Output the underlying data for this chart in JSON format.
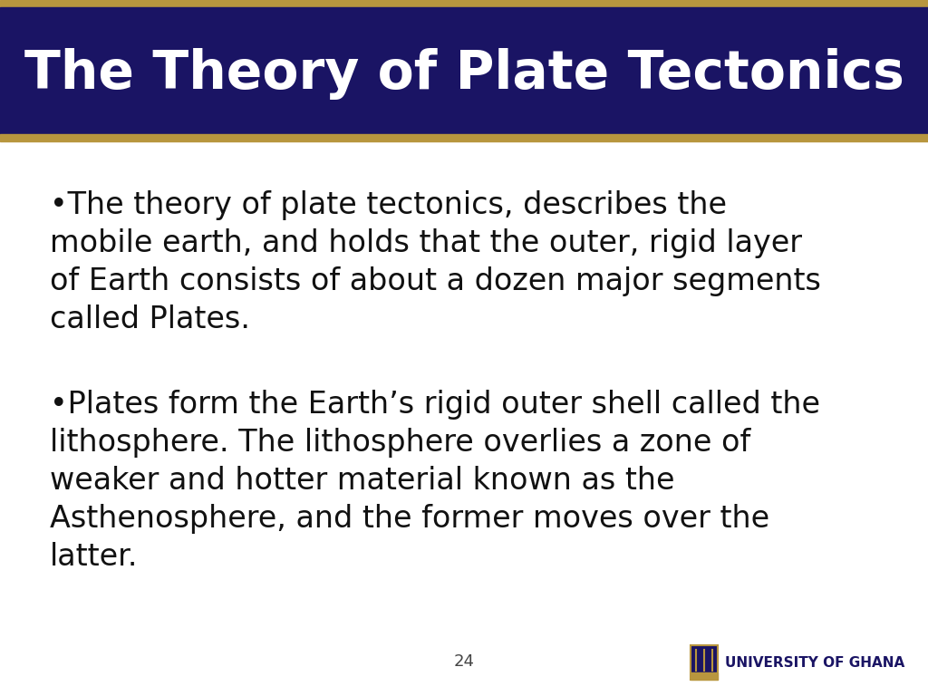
{
  "title": "The Theory of Plate Tectonics",
  "title_color": "#FFFFFF",
  "title_bg_color": "#1a1464",
  "title_font_size": 42,
  "gold_bar_color": "#B8963E",
  "background_color": "#FFFFFF",
  "bullet1_lines": [
    "•The theory of plate tectonics, describes the",
    "mobile earth, and holds that the outer, rigid layer",
    "of Earth consists of about a dozen major segments",
    "called Plates."
  ],
  "bullet2_lines": [
    "•Plates form the Earth’s rigid outer shell called the",
    "lithosphere. The lithosphere overlies a zone of",
    "weaker and hotter material known as the",
    "Asthenosphere, and the former moves over the",
    "latter."
  ],
  "body_font_size": 24,
  "body_color": "#111111",
  "page_number": "24",
  "footer_text": "UNIVERSITY OF GHANA",
  "footer_color": "#1a1464",
  "footer_font_size": 11
}
